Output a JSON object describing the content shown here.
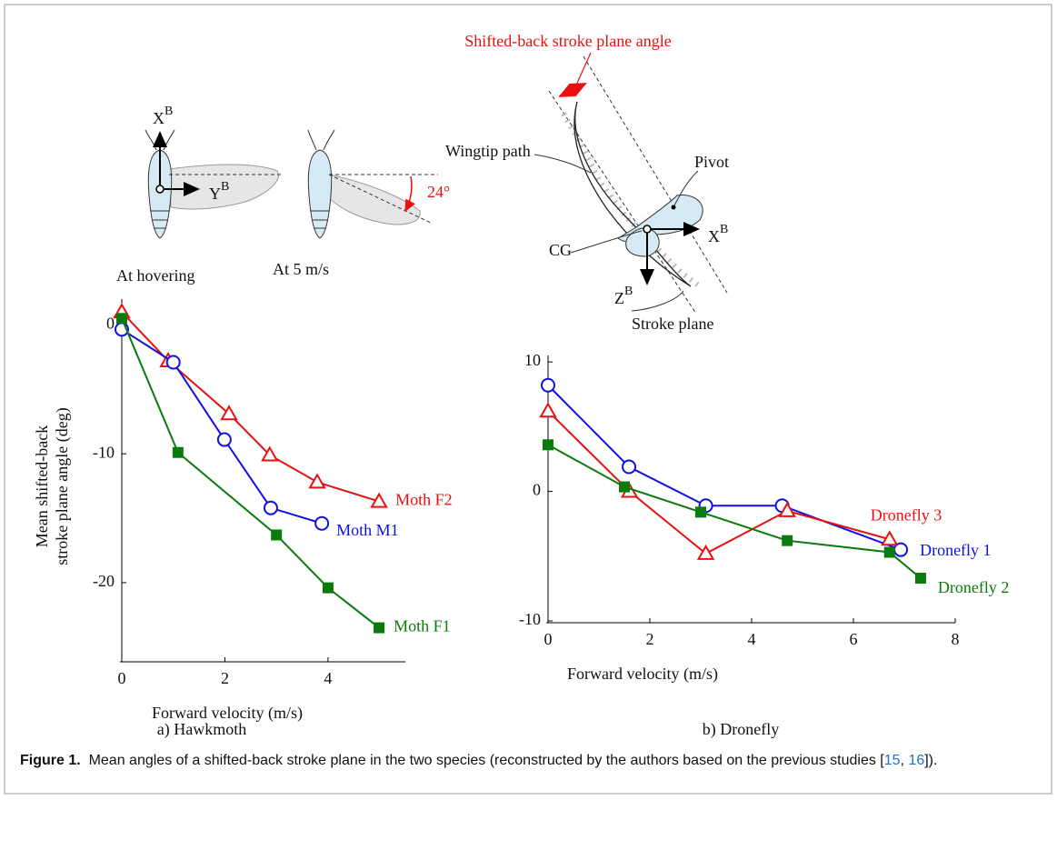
{
  "chart_data": [
    {
      "type": "line",
      "subtitle": "a) Hawkmoth",
      "xlabel": "Forward velocity (m/s)",
      "ylabel": [
        "Mean shifted-back",
        "stroke plane angle (deg)"
      ],
      "xlim": [
        0,
        5.5
      ],
      "ylim": [
        -26,
        2
      ],
      "xticks": [
        0,
        2,
        4
      ],
      "yticks": [
        0,
        -10,
        -20
      ],
      "series": [
        {
          "name": "Moth F2",
          "color": "#e81010",
          "marker": "triangle",
          "x": [
            0,
            0.9,
            2.08,
            2.87,
            3.79,
            4.99
          ],
          "values": [
            1.0,
            -2.8,
            -6.9,
            -10.1,
            -12.2,
            -13.7
          ]
        },
        {
          "name": "Moth M1",
          "color": "#1010e0",
          "marker": "circle",
          "x": [
            0,
            1.0,
            1.99,
            2.89,
            3.88
          ],
          "values": [
            -0.35,
            -2.9,
            -8.9,
            -14.2,
            -15.4
          ]
        },
        {
          "name": "Moth F1",
          "color": "#0a7a0a",
          "marker": "square",
          "x": [
            0,
            1.09,
            3.0,
            4.0,
            4.99
          ],
          "values": [
            0.5,
            -9.9,
            -16.3,
            -20.4,
            -23.5
          ]
        }
      ]
    },
    {
      "type": "line",
      "subtitle": "b) Dronefly",
      "xlabel": "Forward velocity (m/s)",
      "xlim": [
        0,
        8
      ],
      "ylim": [
        -10,
        10.5
      ],
      "xticks": [
        0,
        2,
        4,
        6,
        8
      ],
      "yticks": [
        10,
        0,
        -10
      ],
      "series": [
        {
          "name": "Dronefly 1",
          "color": "#1010e0",
          "marker": "circle",
          "x": [
            0,
            1.59,
            3.1,
            4.6,
            6.93
          ],
          "values": [
            8.2,
            1.9,
            -1.1,
            -1.1,
            -4.5
          ]
        },
        {
          "name": "Dronefly 3",
          "color": "#e81010",
          "marker": "triangle",
          "x": [
            0,
            1.6,
            3.1,
            4.7,
            6.71
          ],
          "values": [
            6.2,
            0,
            -4.8,
            -1.5,
            -3.7
          ]
        },
        {
          "name": "Dronefly 2",
          "color": "#0a7a0a",
          "marker": "square",
          "x": [
            0,
            1.5,
            3.0,
            4.7,
            6.71,
            7.32
          ],
          "values": [
            3.6,
            0.35,
            -1.6,
            -3.8,
            -4.7,
            -6.7
          ]
        }
      ]
    }
  ],
  "diagram": {
    "hover_x": {
      "base": "X",
      "sup": "B"
    },
    "hover_y": {
      "base": "Y",
      "sup": "B"
    },
    "angle": "24°",
    "hovering": "At hovering",
    "forward": "At 5 m/s",
    "stroke_angle": "Shifted-back stroke plane angle",
    "wingtip": "Wingtip path",
    "pivot": "Pivot",
    "cg": "CG",
    "fly_x": {
      "base": "X",
      "sup": "B"
    },
    "fly_z": {
      "base": "Z",
      "sup": "B"
    },
    "stroke_plane": "Stroke plane"
  },
  "caption": {
    "label": "Figure 1.",
    "parts": [
      "Mean angles of a shifted-back stroke plane in the two species (reconstructed by the authors based on the previous studies [",
      "15",
      ", ",
      "16",
      "])."
    ]
  }
}
